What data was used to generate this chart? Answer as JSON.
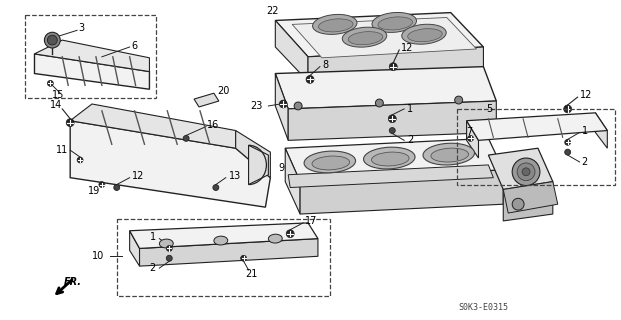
{
  "bg_color": "#ffffff",
  "fig_width": 6.21,
  "fig_height": 3.2,
  "dpi": 100,
  "diagram_ref": "S0K3-E0315"
}
